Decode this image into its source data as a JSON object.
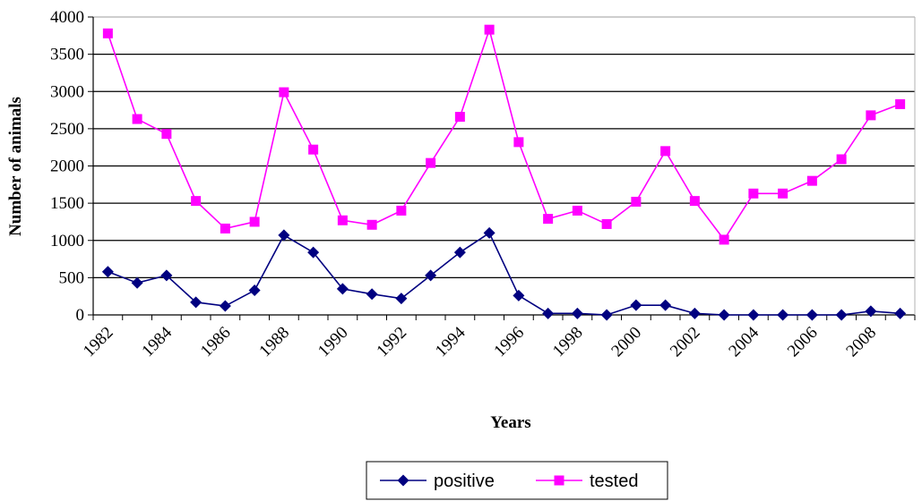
{
  "chart_data": {
    "type": "line",
    "title": "",
    "xlabel": "Years",
    "ylabel": "Number of animals",
    "ylim": [
      0,
      4000
    ],
    "yticks": [
      "0",
      "500",
      "1000",
      "1500",
      "2000",
      "2500",
      "3000",
      "3500",
      "4000"
    ],
    "x_tick_labels": [
      "1982",
      "1984",
      "1986",
      "1988",
      "1990",
      "1992",
      "1994",
      "1996",
      "1998",
      "2000",
      "2002",
      "2004",
      "2006",
      "2008"
    ],
    "x": [
      1982,
      1983,
      1984,
      1985,
      1986,
      1987,
      1988,
      1989,
      1990,
      1991,
      1992,
      1993,
      1994,
      1995,
      1996,
      1997,
      1998,
      1999,
      2000,
      2001,
      2002,
      2003,
      2004,
      2005,
      2006,
      2007,
      2008,
      2009
    ],
    "grid": true,
    "legend_position": "bottom",
    "series": [
      {
        "name": "positive",
        "color": "#000080",
        "marker": "diamond",
        "values": [
          580,
          430,
          530,
          170,
          120,
          330,
          1070,
          840,
          350,
          280,
          220,
          530,
          840,
          1100,
          260,
          20,
          20,
          0,
          130,
          130,
          20,
          0,
          0,
          0,
          0,
          0,
          50,
          20
        ]
      },
      {
        "name": "tested",
        "color": "#ff00ff",
        "marker": "square",
        "values": [
          3780,
          2630,
          2430,
          1530,
          1160,
          1250,
          2990,
          2220,
          1270,
          1210,
          1400,
          2040,
          2660,
          3830,
          2320,
          1290,
          1400,
          1220,
          1520,
          2200,
          1530,
          1010,
          1630,
          1630,
          1800,
          2090,
          2680,
          2830
        ]
      }
    ]
  }
}
